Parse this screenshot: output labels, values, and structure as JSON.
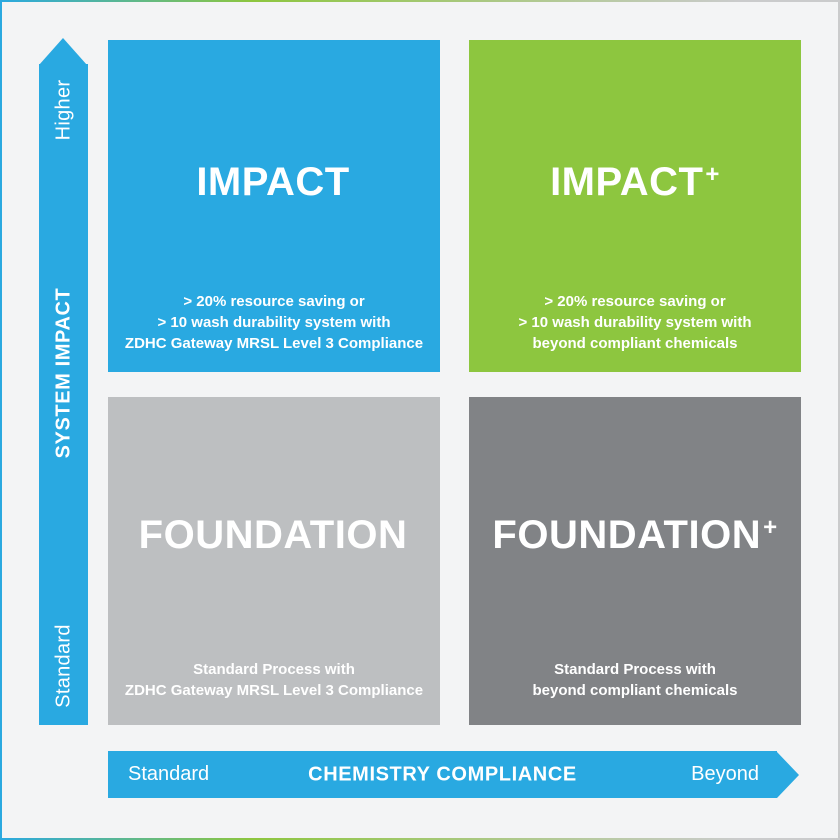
{
  "matrix": {
    "quadrants": [
      {
        "name": "impact",
        "title": "IMPACT",
        "plus": "",
        "color": "#29a9e1",
        "description": [
          "> 20% resource saving or",
          "> 10 wash durability system with",
          "ZDHC Gateway MRSL Level 3 Compliance"
        ]
      },
      {
        "name": "impact-plus",
        "title": "IMPACT",
        "plus": "+",
        "color": "#8dc63f",
        "description": [
          "> 20% resource saving or",
          "> 10 wash durability system with",
          "beyond compliant chemicals"
        ]
      },
      {
        "name": "foundation",
        "title": "FOUNDATION",
        "plus": "",
        "color": "#bdbfc1",
        "description": [
          "Standard Process with",
          "ZDHC Gateway MRSL Level 3 Compliance"
        ]
      },
      {
        "name": "foundation-plus",
        "title": "FOUNDATION",
        "plus": "+",
        "color": "#818386",
        "description": [
          "Standard Process with",
          "beyond compliant chemicals"
        ]
      }
    ],
    "y_axis": {
      "label": "SYSTEM IMPACT",
      "top": "Higher",
      "bottom": "Standard",
      "color": "#29a9e1"
    },
    "x_axis": {
      "label": "CHEMISTRY COMPLIANCE",
      "left": "Standard",
      "right": "Beyond",
      "color": "#29a9e1"
    }
  },
  "palette": {
    "blue": "#29a9e1",
    "green": "#8dc63f",
    "light_gray": "#bdbfc1",
    "dark_gray": "#818386",
    "background": "#f3f4f5",
    "text": "#ffffff",
    "border_gradient": [
      "#2aa9e0",
      "#8dc63f",
      "#cacbcc"
    ]
  }
}
